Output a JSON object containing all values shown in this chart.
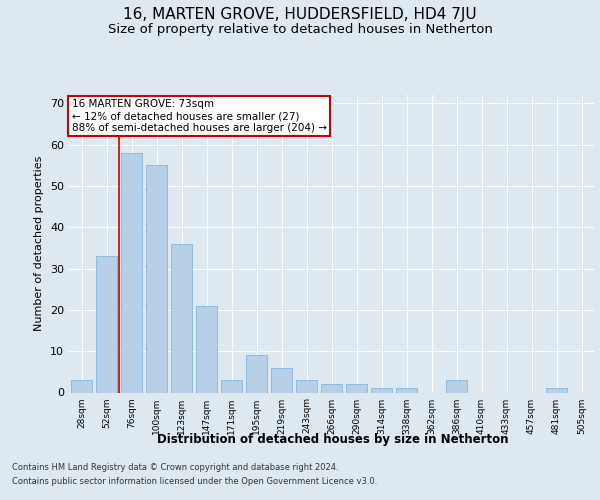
{
  "title": "16, MARTEN GROVE, HUDDERSFIELD, HD4 7JU",
  "subtitle": "Size of property relative to detached houses in Netherton",
  "xlabel": "Distribution of detached houses by size in Netherton",
  "ylabel": "Number of detached properties",
  "categories": [
    "28sqm",
    "52sqm",
    "76sqm",
    "100sqm",
    "123sqm",
    "147sqm",
    "171sqm",
    "195sqm",
    "219sqm",
    "243sqm",
    "266sqm",
    "290sqm",
    "314sqm",
    "338sqm",
    "362sqm",
    "386sqm",
    "410sqm",
    "433sqm",
    "457sqm",
    "481sqm",
    "505sqm"
  ],
  "values": [
    3,
    33,
    58,
    55,
    36,
    21,
    3,
    9,
    6,
    3,
    2,
    2,
    1,
    1,
    0,
    3,
    0,
    0,
    0,
    1,
    0
  ],
  "bar_color": "#b8cfe8",
  "bar_edge_color": "#7aadd4",
  "property_line_color": "#cc0000",
  "annotation_text": "16 MARTEN GROVE: 73sqm\n← 12% of detached houses are smaller (27)\n88% of semi-detached houses are larger (204) →",
  "annotation_box_color": "#ffffff",
  "annotation_box_edge_color": "#cc0000",
  "ylim": [
    0,
    72
  ],
  "yticks": [
    0,
    10,
    20,
    30,
    40,
    50,
    60,
    70
  ],
  "bg_color": "#dde8f0",
  "grid_color": "#ffffff",
  "footer_line1": "Contains HM Land Registry data © Crown copyright and database right 2024.",
  "footer_line2": "Contains public sector information licensed under the Open Government Licence v3.0.",
  "title_fontsize": 11,
  "subtitle_fontsize": 9.5,
  "xlabel_fontsize": 8.5,
  "ylabel_fontsize": 8
}
